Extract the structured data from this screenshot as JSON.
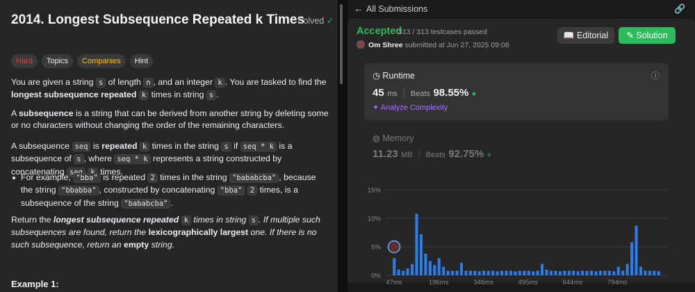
{
  "problem": {
    "title": "2014. Longest Subsequence Repeated k Times",
    "status": "Solved",
    "tags": [
      "Hard",
      "Topics",
      "Companies",
      "Hint"
    ],
    "paragraphs": [
      {
        "segments": [
          "You are given a string ",
          {
            "text": "s",
            "style": "code"
          },
          " of length ",
          {
            "text": "n",
            "style": "code"
          },
          ", and an integer ",
          {
            "text": "k",
            "style": "code"
          },
          ". You are tasked to find the ",
          {
            "text": "longest subsequence repeated",
            "style": "b"
          },
          " ",
          {
            "text": "k",
            "style": "code"
          },
          " times in string ",
          {
            "text": "s",
            "style": "code"
          },
          "."
        ]
      },
      {
        "segments": [
          "A ",
          {
            "text": "subsequence",
            "style": "b"
          },
          " is a string that can be derived from another string by deleting some or no characters without changing the order of the remaining characters."
        ]
      },
      {
        "segments": [
          "A subsequence ",
          {
            "text": "seq",
            "style": "code"
          },
          " is ",
          {
            "text": "repeated",
            "style": "b"
          },
          " ",
          {
            "text": "k",
            "style": "code"
          },
          " times in the string ",
          {
            "text": "s",
            "style": "code"
          },
          " if ",
          {
            "text": "seq * k",
            "style": "code"
          },
          " is a subsequence of ",
          {
            "text": "s",
            "style": "code"
          },
          ", where ",
          {
            "text": "seq * k",
            "style": "code"
          },
          " represents a string constructed by concatenating ",
          {
            "text": "seq",
            "style": "code"
          },
          " ",
          {
            "text": "k",
            "style": "code"
          },
          " times."
        ]
      },
      {
        "bullet": true,
        "segments": [
          "For example, ",
          {
            "text": "\"bba\"",
            "style": "code"
          },
          " is repeated ",
          {
            "text": "2",
            "style": "code"
          },
          " times in the string ",
          {
            "text": "\"bababcba\"",
            "style": "code"
          },
          ", because the string ",
          {
            "text": "\"bbabba\"",
            "style": "code"
          },
          ", constructed by concatenating ",
          {
            "text": "\"bba\"",
            "style": "code"
          },
          " ",
          {
            "text": "2",
            "style": "code"
          },
          " times, is a subsequence of the string ",
          {
            "text": "\"bababcba\"",
            "style": "code"
          },
          "."
        ]
      },
      {
        "segments": [
          "Return the ",
          {
            "text": "longest subsequence repeated",
            "style": "bi"
          },
          {
            "text": " ",
            "style": "i"
          },
          {
            "text": "k",
            "style": "code"
          },
          {
            "text": " times in string ",
            "style": "i"
          },
          {
            "text": "s",
            "style": "code"
          },
          {
            "text": ". If multiple such subsequences are found, return the ",
            "style": "i"
          },
          {
            "text": "lexicographically largest",
            "style": "b"
          },
          {
            "text": " one. If there is no such subsequence, return an ",
            "style": "i"
          },
          {
            "text": "empty",
            "style": "b"
          },
          {
            "text": " string.",
            "style": "i"
          }
        ]
      }
    ],
    "example_heading": "Example 1:"
  },
  "submission": {
    "back_label": "All Submissions",
    "verdict": "Accepted",
    "testcases": "313 / 313 testcases passed",
    "user": "Om Shree",
    "submitted": "submitted at Jun 27, 2025 09:08",
    "buttons": [
      "Editorial",
      "Solution"
    ],
    "runtime": {
      "label": "Runtime",
      "value": "45",
      "unit": "ms",
      "beats_label": "Beats",
      "beats": "98.55%",
      "analyze": "Analyze Complexity"
    },
    "memory": {
      "label": "Memory",
      "value": "11.23",
      "unit": "MB",
      "beats_label": "Beats",
      "beats": "92.75%"
    }
  },
  "runtime_chart": {
    "type": "histogram",
    "color": "#2b7de9",
    "bins": [
      40,
      55,
      70,
      85,
      100,
      115,
      130,
      145,
      160,
      175,
      190,
      205,
      220,
      235,
      250,
      265,
      280,
      295,
      310,
      325,
      340,
      355,
      370,
      385,
      400,
      415,
      430,
      445,
      460,
      475,
      490,
      505,
      520,
      535,
      550,
      565,
      580,
      595,
      610,
      625,
      640,
      655,
      670,
      685,
      700,
      715,
      730,
      745,
      760,
      775,
      790,
      805,
      820,
      835,
      850,
      865,
      880,
      895,
      910,
      925,
      940
    ],
    "values": [
      3.0,
      1.0,
      0.8,
      1.2,
      2.0,
      10.8,
      7.2,
      3.8,
      2.5,
      1.8,
      3.0,
      1.5,
      0.8,
      0.8,
      0.8,
      2.2,
      0.8,
      0.8,
      0.8,
      0.7,
      0.8,
      0.8,
      0.8,
      0.7,
      0.8,
      0.8,
      0.8,
      0.7,
      0.8,
      0.8,
      0.8,
      0.7,
      0.8,
      2.0,
      1.0,
      0.8,
      0.8,
      0.7,
      0.8,
      0.8,
      0.8,
      0.7,
      0.8,
      0.8,
      0.8,
      0.7,
      0.8,
      0.8,
      0.8,
      0.7,
      1.5,
      0.8,
      2.0,
      5.8,
      8.7,
      1.5,
      0.8,
      0.8,
      0.8,
      0.7
    ],
    "xlim": [
      40,
      940
    ],
    "ylim": [
      0,
      15
    ],
    "xticks": [
      {
        "value": 47,
        "label": "47ms"
      },
      {
        "value": 196,
        "label": "196ms"
      },
      {
        "value": 346,
        "label": "346ms"
      },
      {
        "value": 495,
        "label": "495ms"
      },
      {
        "value": 644,
        "label": "644ms"
      },
      {
        "value": 794,
        "label": "794ms"
      }
    ],
    "yticks": [
      {
        "value": 0,
        "label": "0%"
      },
      {
        "value": 5,
        "label": "5%"
      },
      {
        "value": 10,
        "label": "10%"
      },
      {
        "value": 15,
        "label": "15%"
      }
    ],
    "grid": true
  }
}
